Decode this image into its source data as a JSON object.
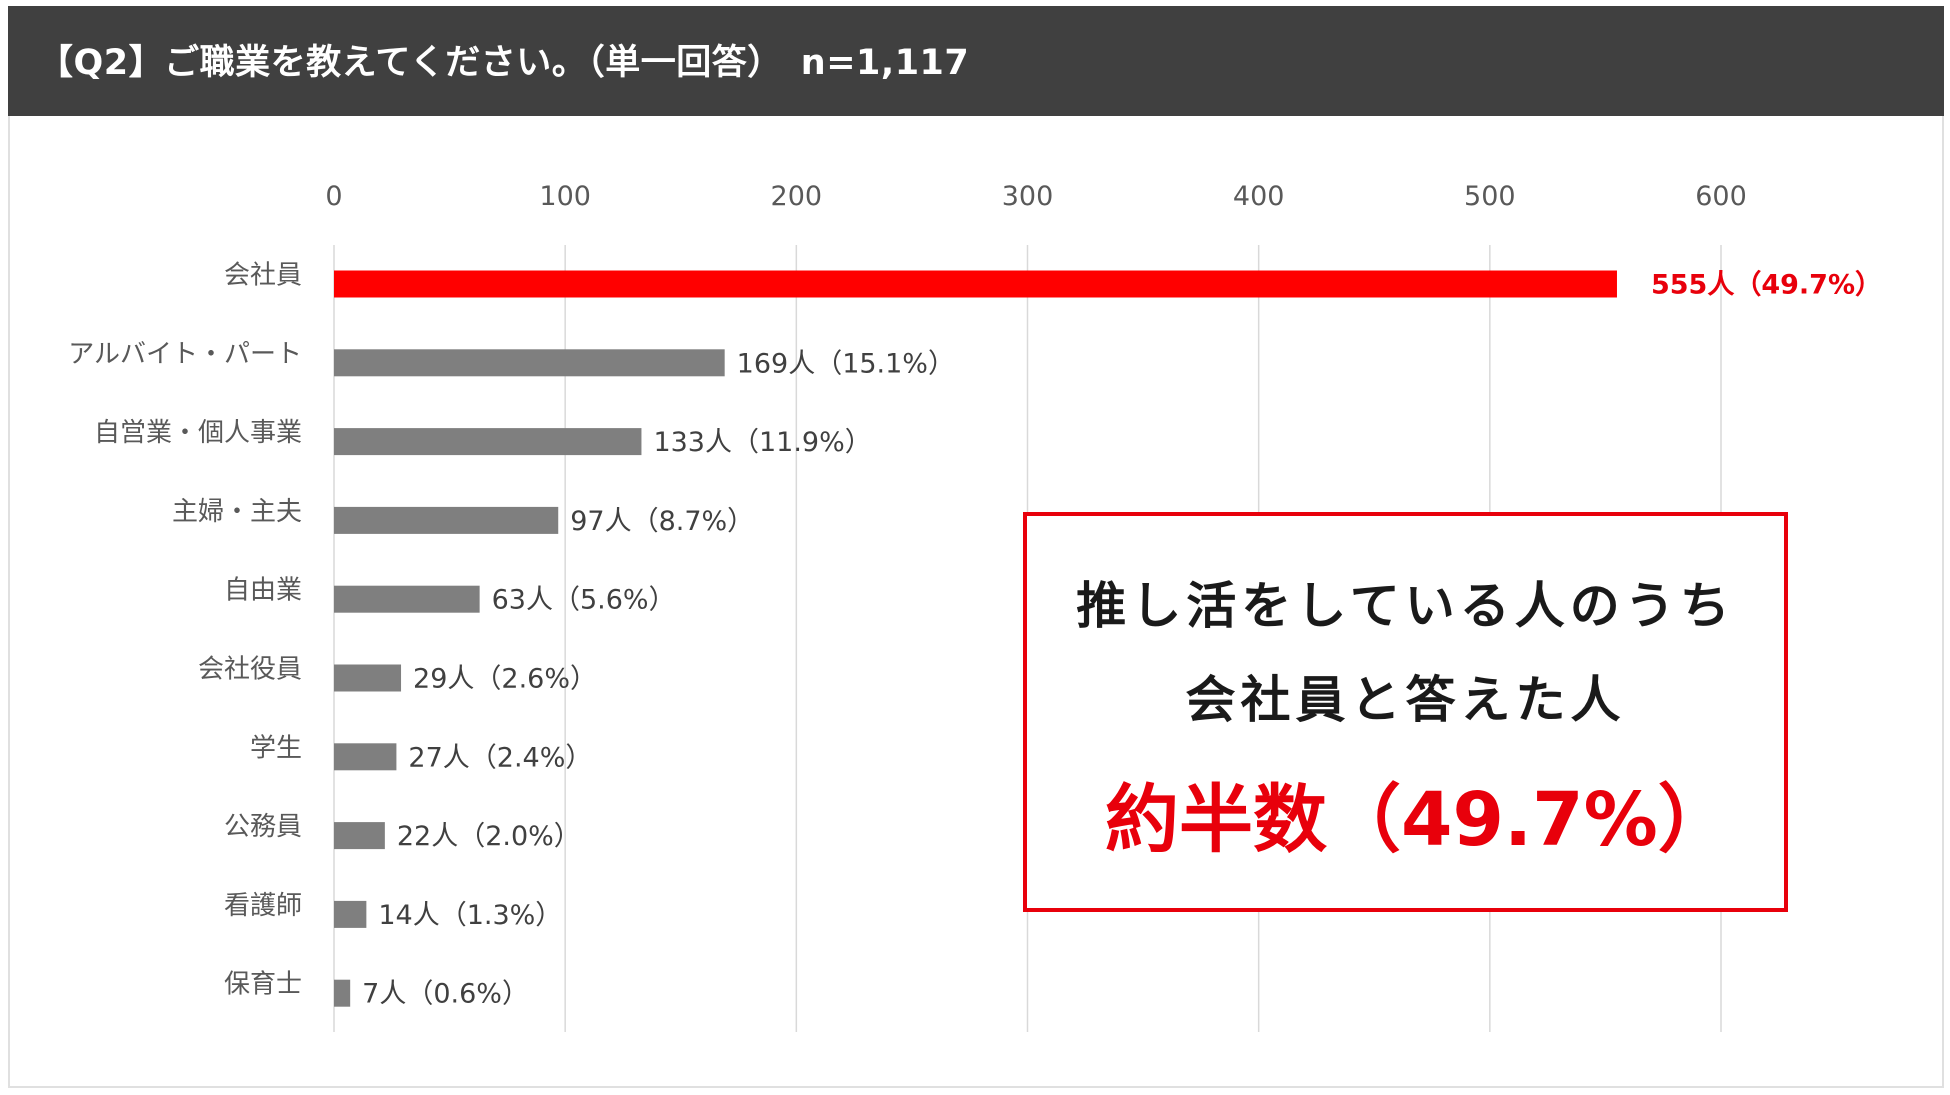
{
  "header": {
    "title": "【Q2】ご職業を教えてください。（単一回答）　n=1,117"
  },
  "callout": {
    "line1": "推し活をしている人のうち",
    "line2": "会社員と答えた人",
    "highlight": "約半数（49.7%）"
  },
  "colors": {
    "header_bg": "#404040",
    "bar_default": "#7f7f7f",
    "bar_highlight": "#ff0000",
    "label_highlight": "#e8000b",
    "grid": "#d9d9d9"
  },
  "chart_data": {
    "type": "bar",
    "orientation": "horizontal",
    "xlim": [
      0,
      600
    ],
    "xticks": [
      "0",
      "100",
      "200",
      "300",
      "400",
      "500",
      "600"
    ],
    "grid": true,
    "categories": [
      "会社員",
      "アルバイト・パート",
      "自営業・個人事業",
      "主婦・主夫",
      "自由業",
      "会社役員",
      "学生",
      "公務員",
      "看護師",
      "保育士"
    ],
    "values": [
      555,
      169,
      133,
      97,
      63,
      29,
      27,
      22,
      14,
      7
    ],
    "data_labels": [
      "555人（49.7%）",
      "169人（15.1%）",
      "133人（11.9%）",
      "97人（8.7%）",
      "63人（5.6%）",
      "29人（2.6%）",
      "27人（2.4%）",
      "22人（2.0%）",
      "14人（1.3%）",
      "7人（0.6%）"
    ],
    "highlight_index": 0
  }
}
